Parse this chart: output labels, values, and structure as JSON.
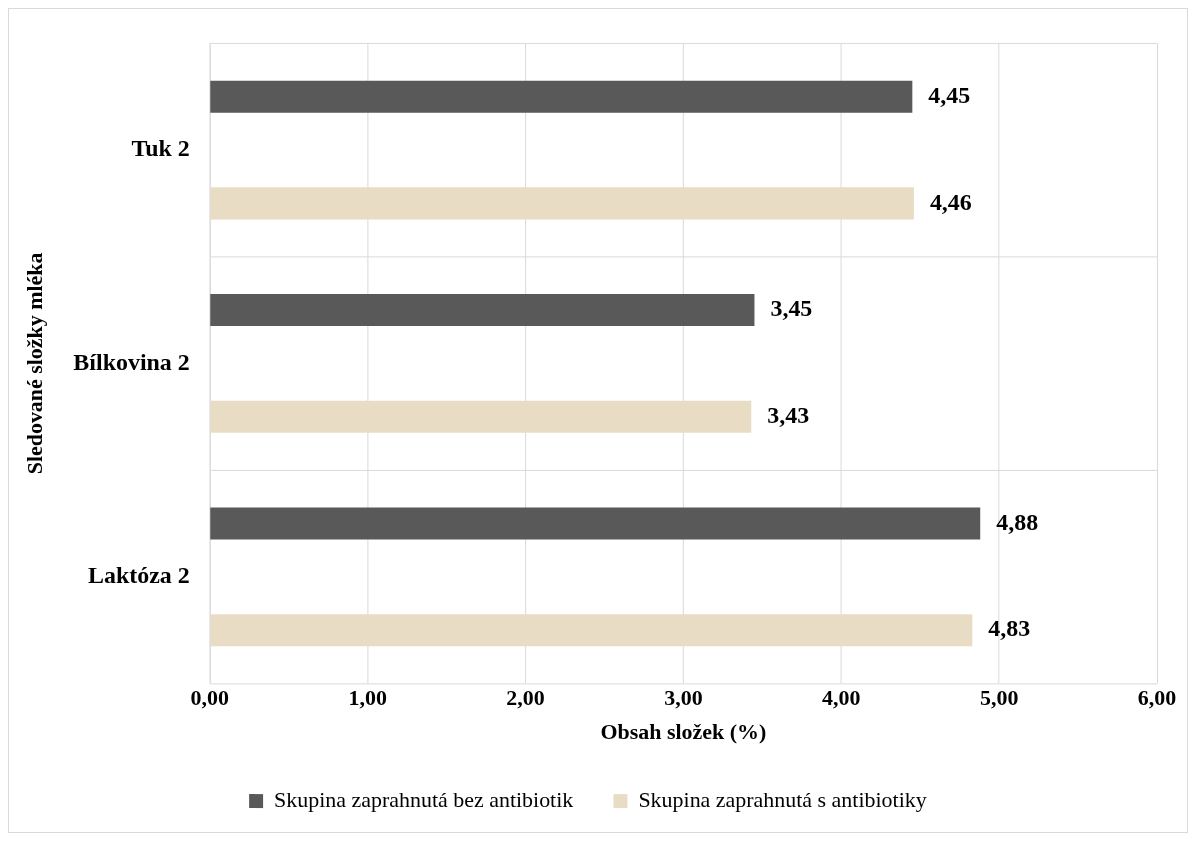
{
  "chart_data": {
    "type": "bar",
    "orientation": "horizontal",
    "xlabel": "Obsah složek (%)",
    "ylabel": "Sledované složky mléka",
    "categories": [
      "Tuk 2",
      "Bílkovina 2",
      "Laktóza 2"
    ],
    "series": [
      {
        "name": "Skupina zaprahnutá bez antibiotik",
        "color": "#595959",
        "values": [
          4.45,
          3.45,
          4.88
        ],
        "value_labels": [
          "4,45",
          "3,45",
          "4,88"
        ]
      },
      {
        "name": "Skupina zaprahnutá s antibiotiky",
        "color": "#e8dcc4",
        "values": [
          4.46,
          3.43,
          4.83
        ],
        "value_labels": [
          "4,46",
          "3,43",
          "4,83"
        ]
      }
    ],
    "xlim": [
      0,
      6
    ],
    "xticks": [
      {
        "value": 0,
        "label": "0,00"
      },
      {
        "value": 1,
        "label": "1,00"
      },
      {
        "value": 2,
        "label": "2,00"
      },
      {
        "value": 3,
        "label": "3,00"
      },
      {
        "value": 4,
        "label": "4,00"
      },
      {
        "value": 5,
        "label": "5,00"
      },
      {
        "value": 6,
        "label": "6,00"
      }
    ],
    "grid": true,
    "legend": "bottom"
  }
}
